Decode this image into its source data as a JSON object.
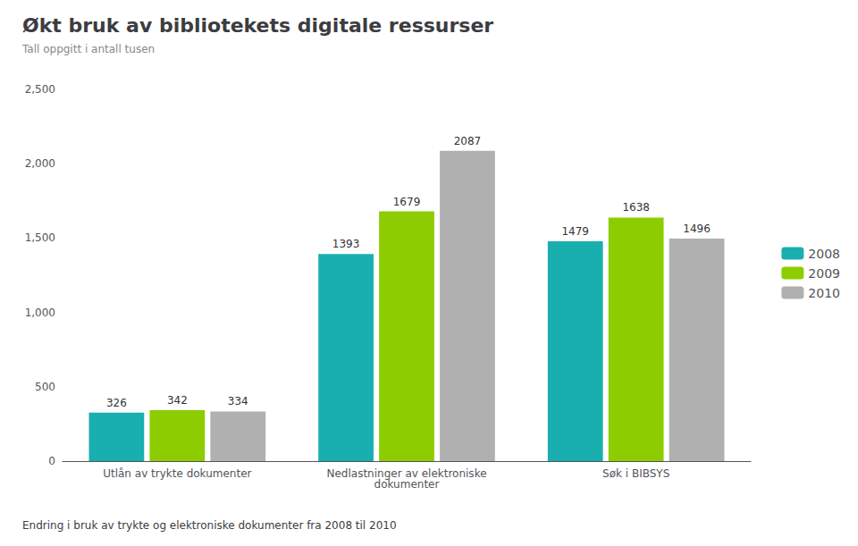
{
  "chart_data": {
    "type": "bar",
    "title": "Økt bruk av bibliotekets digitale ressurser",
    "subtitle": "Tall oppgitt i antall tusen",
    "footer": "Endring i bruk av trykte og elektroniske dokumenter fra 2008 til 2010",
    "categories": [
      "Utlån av trykte dokumenter",
      "Nedlastninger av elektroniske\ndokumenter",
      "Søk i BIBSYS"
    ],
    "series": [
      {
        "name": "2008",
        "color": "#1aafaf",
        "values": [
          326,
          1393,
          1479
        ]
      },
      {
        "name": "2009",
        "color": "#8dcc00",
        "values": [
          342,
          1679,
          1638
        ]
      },
      {
        "name": "2010",
        "color": "#b0b0b0",
        "values": [
          334,
          2087,
          1496
        ]
      }
    ],
    "ylim": [
      0,
      2500
    ],
    "yticks": [
      0,
      500,
      1000,
      1500,
      2000,
      2500
    ],
    "grid": false,
    "legend": "right",
    "data_labels": true
  }
}
